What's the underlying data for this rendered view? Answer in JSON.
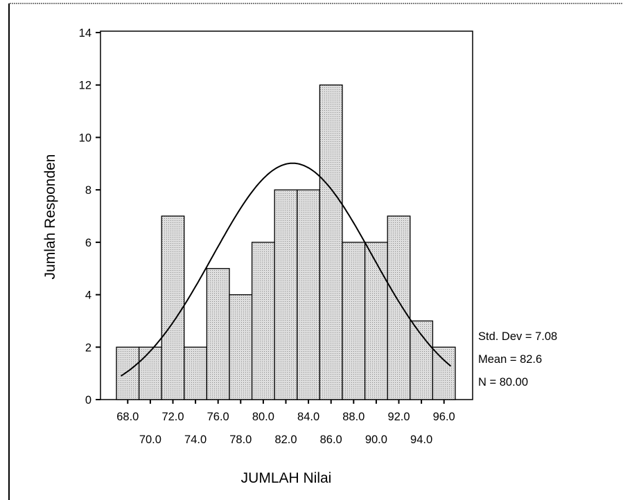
{
  "chart_data": {
    "type": "bar",
    "subtype": "histogram",
    "xlabel": "JUMLAH Nilai",
    "ylabel": "Jumlah Responden",
    "ylim": [
      0,
      14
    ],
    "yticks": [
      0,
      2,
      4,
      6,
      8,
      10,
      12,
      14
    ],
    "xlim": [
      67,
      97
    ],
    "bin_width": 2,
    "bin_centers": [
      68,
      70,
      72,
      74,
      76,
      78,
      80,
      82,
      84,
      86,
      88,
      90,
      92,
      94,
      96
    ],
    "values": [
      2,
      2,
      7,
      2,
      5,
      4,
      6,
      8,
      8,
      12,
      6,
      6,
      7,
      3,
      2
    ],
    "tick_labels_upper": [
      "68.0",
      "72.0",
      "76.0",
      "80.0",
      "84.0",
      "88.0",
      "92.0",
      "96.0"
    ],
    "tick_labels_lower": [
      "70.0",
      "74.0",
      "78.0",
      "82.0",
      "86.0",
      "90.0",
      "94.0"
    ],
    "normal_curve": {
      "mean": 82.6,
      "std_dev": 7.08,
      "n": 80
    },
    "stats": {
      "std_dev_label": "Std. Dev = 7.08",
      "mean_label": "Mean = 82.6",
      "n_label": "N = 80.00"
    },
    "bar_fill": "#d2d2d2",
    "grid": false,
    "legend": "none"
  }
}
